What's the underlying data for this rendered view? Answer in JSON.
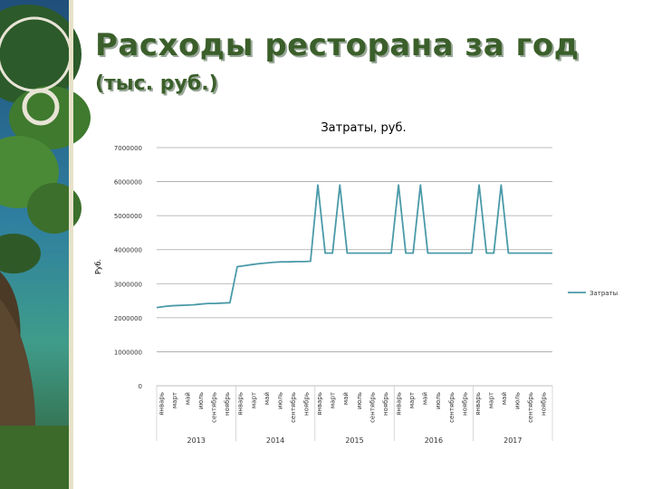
{
  "slide": {
    "title": "Расходы ресторана за год",
    "subtitle": "(тыс. руб.)"
  },
  "colors": {
    "title": "#3b5f2a",
    "line": "#4a9aa8",
    "grid": "#a6a6a6"
  },
  "chart_data": {
    "type": "line",
    "title": "Затраты, руб.",
    "xlabel": "",
    "ylabel": "Руб.",
    "ylim": [
      0,
      7000000
    ],
    "yticks": [
      "0",
      "1000000",
      "2000000",
      "3000000",
      "4000000",
      "5000000",
      "6000000",
      "7000000"
    ],
    "grid": true,
    "legend_position": "right",
    "month_labels": [
      "январь",
      "март",
      "май",
      "июль",
      "сентябрь",
      "ноябрь",
      "январь",
      "март",
      "май",
      "июль",
      "сентябрь",
      "ноябрь",
      "январь",
      "март",
      "май",
      "июль",
      "сентябрь",
      "ноябрь",
      "январь",
      "март",
      "май",
      "июль",
      "сентябрь",
      "ноябрь",
      "январь",
      "март",
      "май",
      "июль",
      "сентябрь",
      "ноябрь"
    ],
    "years": [
      "2013",
      "2014",
      "2015",
      "2016",
      "2017"
    ],
    "series": [
      {
        "name": "Затраты",
        "values": [
          2300000,
          2330000,
          2350000,
          2360000,
          2370000,
          2380000,
          2400000,
          2420000,
          2420000,
          2430000,
          2440000,
          3500000,
          3530000,
          3560000,
          3590000,
          3610000,
          3630000,
          3640000,
          3640000,
          3650000,
          3650000,
          3660000,
          5900000,
          3900000,
          3900000,
          5900000,
          3900000,
          3900000,
          3900000,
          3900000,
          3900000,
          3900000,
          3900000,
          5900000,
          3900000,
          3900000,
          5900000,
          3900000,
          3900000,
          3900000,
          3900000,
          3900000,
          3900000,
          3900000,
          5900000,
          3900000,
          3900000,
          5900000,
          3900000,
          3900000,
          3900000,
          3900000,
          3900000,
          3900000,
          3900000
        ]
      }
    ]
  }
}
